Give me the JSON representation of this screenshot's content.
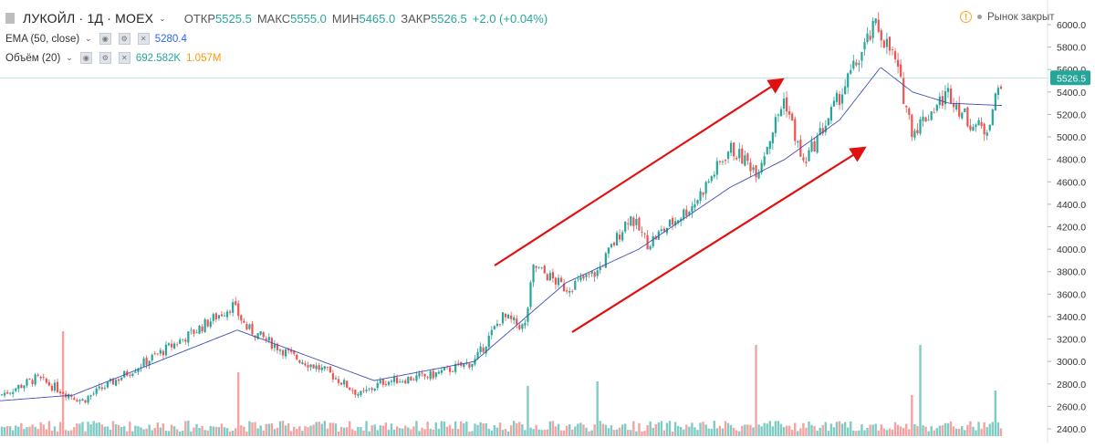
{
  "legend": {
    "symbol": "ЛУКОЙЛ · 1Д · MOEX",
    "open_label": "ОТКР",
    "open": "5525.5",
    "high_label": "МАКС",
    "high": "5555.0",
    "low_label": "МИН",
    "low": "5465.0",
    "close_label": "ЗАКР",
    "close": "5526.5",
    "change": "+2.0 (+0.04%)",
    "ema_label": "EMA (50, close)",
    "ema_value": "5280.4",
    "vol_label": "Объём (20)",
    "vol_value": "692.582K",
    "vol_ma": "1.057M"
  },
  "market_status": "Рынок закрыт",
  "price_tag": "5526.5",
  "colors": {
    "up": "#26a69a",
    "down": "#ef5350",
    "ema": "#3f51b5",
    "arrow": "#e01010",
    "vol_up": "#80cbc4",
    "vol_down": "#f4a3a3"
  },
  "chart_data": {
    "type": "candlestick",
    "ylim": [
      2350,
      6100
    ],
    "y_ticks": [
      2400,
      2600,
      2800,
      3000,
      3200,
      3400,
      3600,
      3800,
      4000,
      4200,
      4400,
      4600,
      4800,
      5000,
      5200,
      5400,
      5600,
      5800,
      6000
    ],
    "grid": false,
    "series": [
      {
        "name": "",
        "key_points": [
          [
            0,
            2700
          ],
          [
            40,
            2850
          ],
          [
            90,
            2650
          ],
          [
            150,
            2950
          ],
          [
            210,
            3250
          ],
          [
            255,
            3500
          ],
          [
            270,
            3300
          ],
          [
            320,
            3050
          ],
          [
            360,
            2900
          ],
          [
            395,
            2700
          ],
          [
            420,
            2820
          ],
          [
            470,
            2870
          ],
          [
            520,
            3000
          ],
          [
            550,
            3400
          ],
          [
            575,
            3300
          ],
          [
            585,
            3850
          ],
          [
            620,
            3650
          ],
          [
            655,
            3800
          ],
          [
            690,
            4300
          ],
          [
            710,
            4050
          ],
          [
            760,
            4400
          ],
          [
            800,
            4900
          ],
          [
            830,
            4700
          ],
          [
            860,
            5350
          ],
          [
            880,
            4750
          ],
          [
            910,
            5200
          ],
          [
            935,
            5600
          ],
          [
            960,
            6000
          ],
          [
            980,
            5700
          ],
          [
            1000,
            5050
          ],
          [
            1040,
            5400
          ],
          [
            1060,
            5150
          ],
          [
            1080,
            5050
          ],
          [
            1098,
            5530
          ]
        ]
      },
      {
        "name": "EMA (50, close)",
        "key_points": [
          [
            0,
            2650
          ],
          [
            80,
            2700
          ],
          [
            260,
            3280
          ],
          [
            320,
            3100
          ],
          [
            410,
            2830
          ],
          [
            520,
            3000
          ],
          [
            570,
            3350
          ],
          [
            620,
            3700
          ],
          [
            700,
            4000
          ],
          [
            800,
            4550
          ],
          [
            860,
            4800
          ],
          [
            920,
            5150
          ],
          [
            965,
            5620
          ],
          [
            1000,
            5400
          ],
          [
            1040,
            5300
          ],
          [
            1098,
            5280
          ]
        ]
      }
    ],
    "volume": {
      "spikes": [
        [
          68,
          1.15
        ],
        [
          260,
          0.7
        ],
        [
          578,
          0.55
        ],
        [
          655,
          0.6
        ],
        [
          828,
          1.0
        ],
        [
          1008,
          1.0
        ],
        [
          998,
          0.45
        ],
        [
          1090,
          0.5
        ]
      ]
    }
  }
}
